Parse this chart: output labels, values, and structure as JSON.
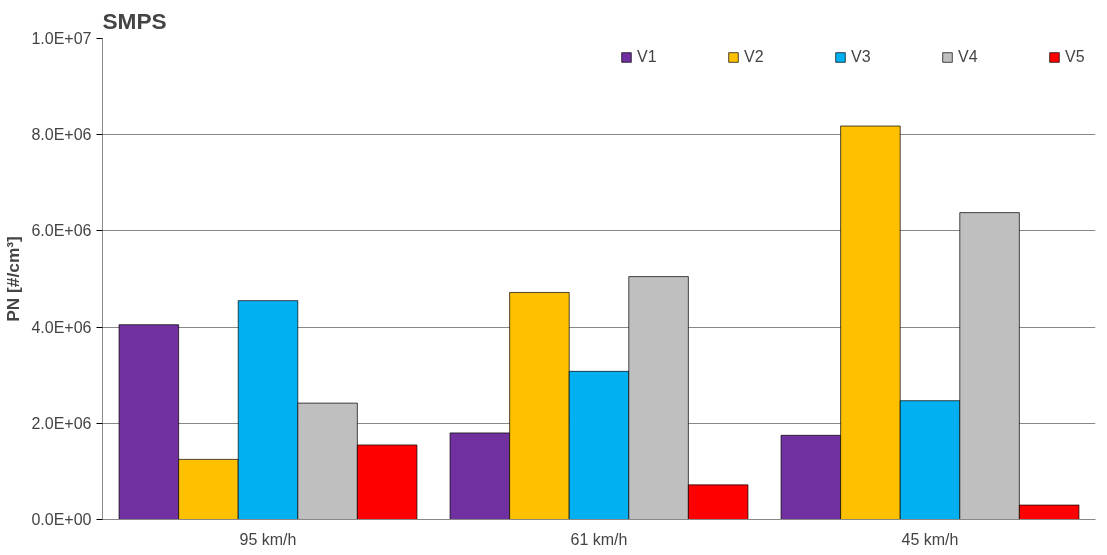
{
  "chart_data": {
    "type": "bar",
    "title": "SMPS",
    "ylabel": "PN [#/cm³]",
    "categories": [
      "95 km/h",
      "61 km/h",
      "45 km/h"
    ],
    "series": [
      {
        "name": "V1",
        "color": "#7030a0",
        "values": [
          4050000,
          1800000,
          1750000
        ]
      },
      {
        "name": "V2",
        "color": "#ffc000",
        "values": [
          1250000,
          4720000,
          8180000
        ]
      },
      {
        "name": "V3",
        "color": "#00b0f0",
        "values": [
          4550000,
          3080000,
          2470000
        ]
      },
      {
        "name": "V4",
        "color": "#bfbfbf",
        "values": [
          2420000,
          5050000,
          6380000
        ]
      },
      {
        "name": "V5",
        "color": "#ff0000",
        "values": [
          1550000,
          720000,
          300000
        ]
      }
    ],
    "ylim": [
      0,
      10000000
    ],
    "yticks": [
      {
        "value": 0,
        "label": "0.0E+00"
      },
      {
        "value": 2000000,
        "label": "2.0E+06"
      },
      {
        "value": 4000000,
        "label": "4.0E+06"
      },
      {
        "value": 6000000,
        "label": "6.0E+06"
      },
      {
        "value": 8000000,
        "label": "8.0E+06"
      },
      {
        "value": 10000000,
        "label": "1.0E+07"
      }
    ],
    "grid": "y",
    "legend": "top right"
  }
}
